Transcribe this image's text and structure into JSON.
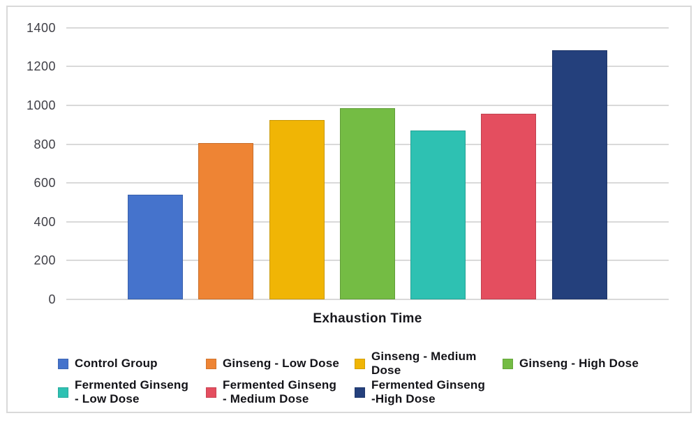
{
  "chart_data": {
    "type": "bar",
    "title": "",
    "xlabel": "Exhaustion Time",
    "ylabel": "",
    "ylim": [
      0,
      1400
    ],
    "yticks": [
      0,
      200,
      400,
      600,
      800,
      1000,
      1200,
      1400
    ],
    "grid": true,
    "legend_position": "bottom",
    "categories": [
      "Control Group",
      "Ginseng - Low Dose",
      "Ginseng - Medium Dose",
      "Ginseng - High Dose",
      "Fermented Ginseng - Low Dose",
      "Fermented Ginseng - Medium Dose",
      "Fermented Ginseng - High Dose"
    ],
    "values": [
      540,
      805,
      925,
      985,
      870,
      955,
      1285
    ],
    "colors": [
      "#4573CC",
      "#EE8434",
      "#F0B505",
      "#74BC44",
      "#2EC1B2",
      "#E44E5F",
      "#24407C"
    ],
    "legend": [
      {
        "label": "Control Group",
        "display": "Control Group"
      },
      {
        "label": "Ginseng - Low Dose",
        "display": "Ginseng - Low Dose"
      },
      {
        "label": "Ginseng - Medium Dose",
        "display": "Ginseng - Medium\nDose"
      },
      {
        "label": "Ginseng - High Dose",
        "display": "Ginseng - High Dose"
      },
      {
        "label": "Fermented Ginseng - Low Dose",
        "display": "Fermented Ginseng\n - Low Dose"
      },
      {
        "label": "Fermented Ginseng - Medium Dose",
        "display": "Fermented Ginseng\n - Medium Dose"
      },
      {
        "label": "Fermented Ginseng - High Dose",
        "display": "Fermented Ginseng\n-High Dose"
      }
    ]
  },
  "colors": {
    "background": "#FFFFFF",
    "frame_border": "#D9D9D9",
    "gridline": "#D9D9D9",
    "tick_text": "#3F3F46",
    "legend_text": "#131318",
    "title_text": "#17171C"
  }
}
